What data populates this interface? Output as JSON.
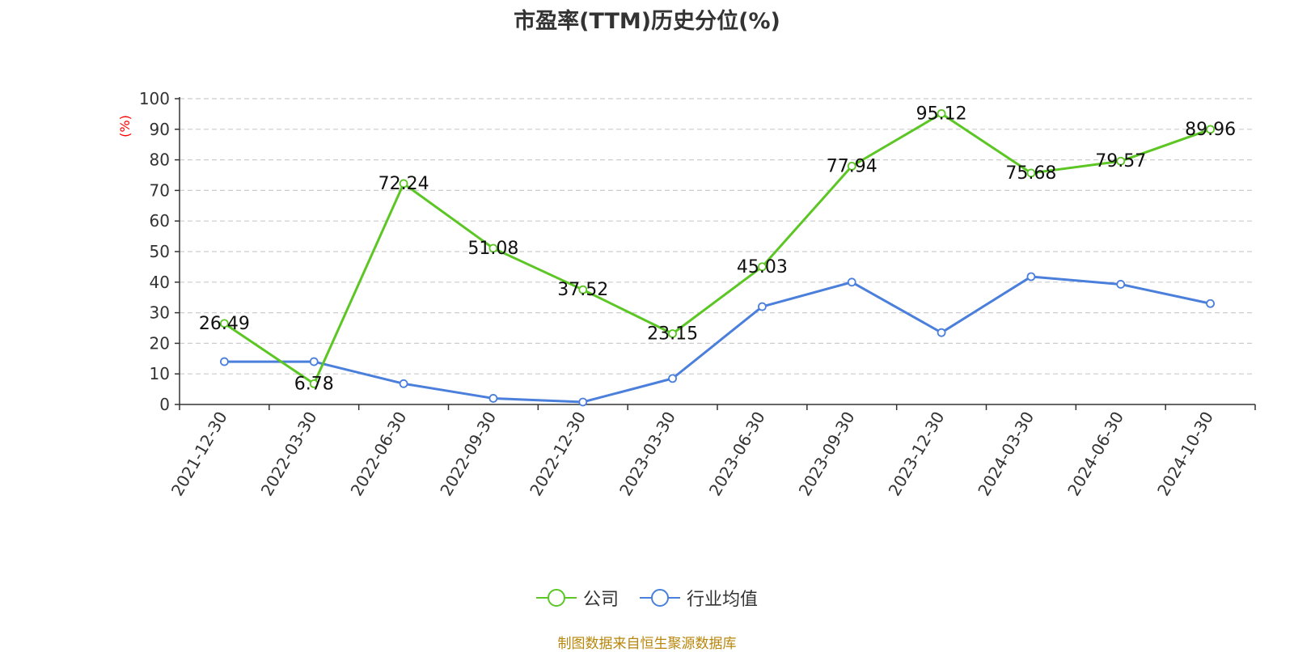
{
  "chart_data": {
    "type": "line",
    "title": "市盈率(TTM)历史分位(%)",
    "ylabel": "(%)",
    "xlabel": "",
    "ylim": [
      0,
      100
    ],
    "y_ticks": [
      0,
      10,
      20,
      30,
      40,
      50,
      60,
      70,
      80,
      90,
      100
    ],
    "grid": true,
    "legend_position": "bottom",
    "categories": [
      "2021-12-30",
      "2022-03-30",
      "2022-06-30",
      "2022-09-30",
      "2022-12-30",
      "2023-03-30",
      "2023-06-30",
      "2023-09-30",
      "2023-12-30",
      "2024-03-30",
      "2024-06-30",
      "2024-10-30"
    ],
    "series": [
      {
        "name": "公司",
        "color": "#5cc625",
        "show_labels": true,
        "values": [
          26.49,
          6.78,
          72.24,
          51.08,
          37.52,
          23.15,
          45.03,
          77.94,
          95.12,
          75.68,
          79.57,
          89.96
        ]
      },
      {
        "name": "行业均值",
        "color": "#4a7fdb",
        "show_labels": false,
        "values": [
          14.0,
          14.0,
          6.8,
          2.0,
          0.8,
          8.5,
          32.0,
          40.0,
          23.5,
          41.8,
          39.3,
          33.0
        ]
      }
    ]
  },
  "source_text": "制图数据来自恒生聚源数据库",
  "colors": {
    "title": "#333333",
    "ylabel": "#ff0000",
    "grid": "#cccccc",
    "source": "#b8860b"
  }
}
